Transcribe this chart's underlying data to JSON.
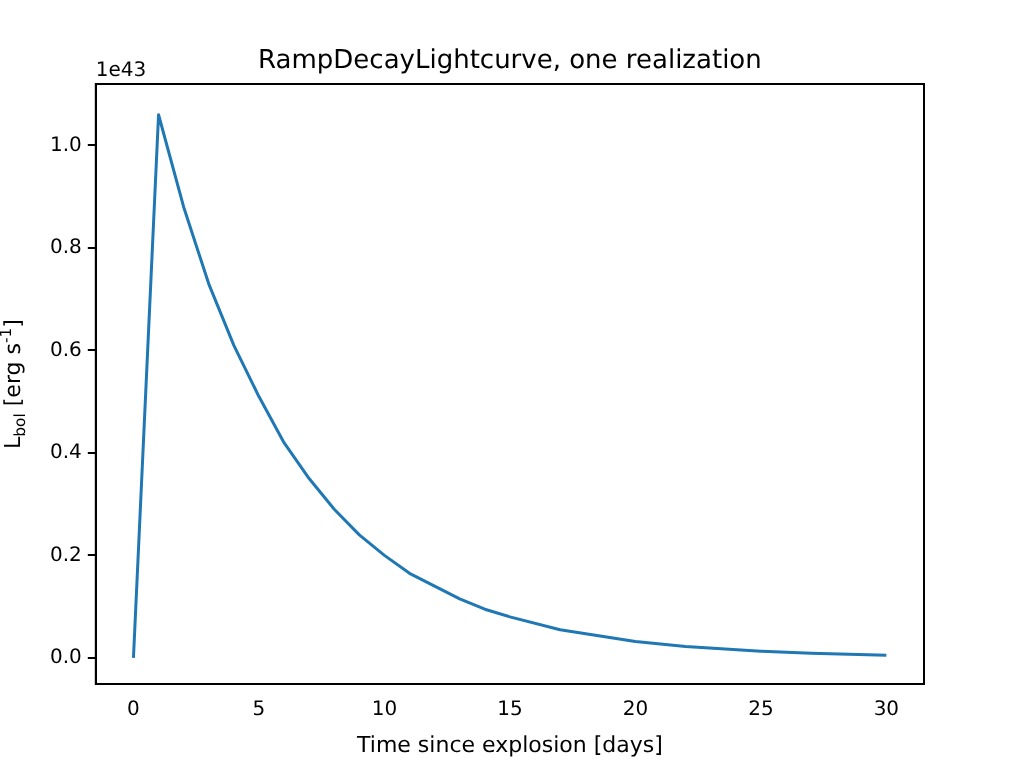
{
  "chart_data": {
    "type": "line",
    "title": "RampDecayLightcurve, one realization",
    "xlabel": "Time since explosion [days]",
    "ylabel": "L$_{bol}$ [erg s$^{-1}$]",
    "annotations": [
      "1e43"
    ],
    "x": [
      0,
      1,
      2,
      3,
      4,
      5,
      6,
      7,
      8,
      9,
      10,
      11,
      12,
      13,
      14,
      15,
      17,
      20,
      22,
      25,
      27,
      30
    ],
    "series": [
      {
        "color": "#1f77b4",
        "values": [
          0,
          1.06,
          0.88,
          0.73,
          0.61,
          0.51,
          0.42,
          0.35,
          0.29,
          0.24,
          0.2,
          0.165,
          0.14,
          0.115,
          0.095,
          0.08,
          0.055,
          0.032,
          0.022,
          0.013,
          0.009,
          0.005
        ]
      }
    ],
    "xlim": [
      -1.5,
      31.5
    ],
    "ylim": [
      -0.051,
      1.12
    ],
    "xticks": [
      0,
      5,
      10,
      15,
      20,
      25,
      30
    ],
    "yticks": [
      {
        "value": 0,
        "label": "0.0"
      },
      {
        "value": 0.2,
        "label": "0.2"
      },
      {
        "value": 0.4,
        "label": "0.4"
      },
      {
        "value": 0.6,
        "label": "0.6"
      },
      {
        "value": 0.8,
        "label": "0.8"
      },
      {
        "value": 1,
        "label": "1.0"
      }
    ],
    "grid": false,
    "legend": false,
    "marker": "none",
    "line_style": "solid"
  }
}
